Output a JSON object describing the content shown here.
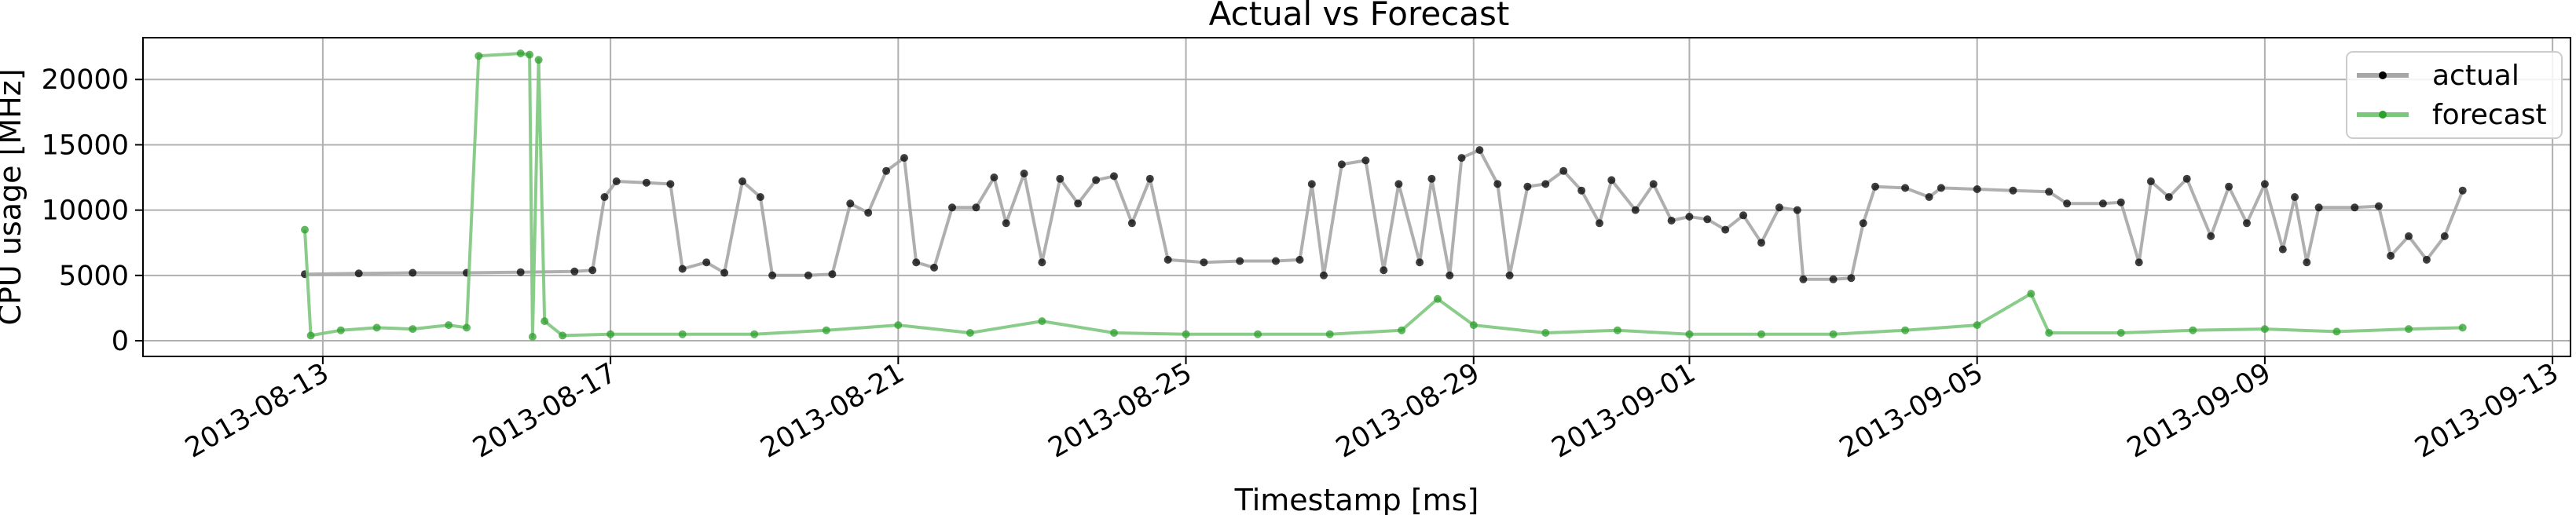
{
  "chart_data": {
    "type": "line",
    "title": "Actual vs Forecast",
    "xlabel": "Timestamp [ms]",
    "ylabel": "CPU usage [MHz]",
    "x_range": [
      "2013-08-10T12:00",
      "2013-09-13T06:00"
    ],
    "ylim": [
      -1200,
      23200
    ],
    "grid": true,
    "legend_position": "top-right",
    "x_ticks": [
      "2013-08-13",
      "2013-08-17",
      "2013-08-21",
      "2013-08-25",
      "2013-08-29",
      "2013-09-01",
      "2013-09-05",
      "2013-09-09",
      "2013-09-13"
    ],
    "y_ticks": [
      0,
      5000,
      10000,
      15000,
      20000
    ],
    "y_tick_labels": [
      "0",
      "5000",
      "10000",
      "15000",
      "20000"
    ],
    "series": [
      {
        "name": "actual",
        "color": "#000000",
        "line_color": "#a6a6a6",
        "points": [
          [
            "2013-08-12T18:00",
            5100
          ],
          [
            "2013-08-13T12:00",
            5150
          ],
          [
            "2013-08-14T06:00",
            5200
          ],
          [
            "2013-08-15T00:00",
            5200
          ],
          [
            "2013-08-15T18:00",
            5250
          ],
          [
            "2013-08-16T12:00",
            5300
          ],
          [
            "2013-08-16T18:00",
            5400
          ],
          [
            "2013-08-16T22:00",
            11000
          ],
          [
            "2013-08-17T02:00",
            12200
          ],
          [
            "2013-08-17T12:00",
            12100
          ],
          [
            "2013-08-17T20:00",
            12000
          ],
          [
            "2013-08-18T00:00",
            5500
          ],
          [
            "2013-08-18T08:00",
            6000
          ],
          [
            "2013-08-18T14:00",
            5200
          ],
          [
            "2013-08-18T20:00",
            12200
          ],
          [
            "2013-08-19T02:00",
            11000
          ],
          [
            "2013-08-19T06:00",
            5000
          ],
          [
            "2013-08-19T18:00",
            5000
          ],
          [
            "2013-08-20T02:00",
            5100
          ],
          [
            "2013-08-20T08:00",
            10500
          ],
          [
            "2013-08-20T14:00",
            9800
          ],
          [
            "2013-08-20T20:00",
            13000
          ],
          [
            "2013-08-21T02:00",
            14000
          ],
          [
            "2013-08-21T06:00",
            6000
          ],
          [
            "2013-08-21T12:00",
            5600
          ],
          [
            "2013-08-21T18:00",
            10200
          ],
          [
            "2013-08-22T02:00",
            10200
          ],
          [
            "2013-08-22T08:00",
            12500
          ],
          [
            "2013-08-22T12:00",
            9000
          ],
          [
            "2013-08-22T18:00",
            12800
          ],
          [
            "2013-08-23T00:00",
            6000
          ],
          [
            "2013-08-23T06:00",
            12400
          ],
          [
            "2013-08-23T12:00",
            10500
          ],
          [
            "2013-08-23T18:00",
            12300
          ],
          [
            "2013-08-24T00:00",
            12600
          ],
          [
            "2013-08-24T06:00",
            9000
          ],
          [
            "2013-08-24T12:00",
            12400
          ],
          [
            "2013-08-24T18:00",
            6200
          ],
          [
            "2013-08-25T06:00",
            6000
          ],
          [
            "2013-08-25T18:00",
            6100
          ],
          [
            "2013-08-26T06:00",
            6100
          ],
          [
            "2013-08-26T14:00",
            6200
          ],
          [
            "2013-08-26T18:00",
            12000
          ],
          [
            "2013-08-26T22:00",
            5000
          ],
          [
            "2013-08-27T04:00",
            13500
          ],
          [
            "2013-08-27T12:00",
            13800
          ],
          [
            "2013-08-27T18:00",
            5400
          ],
          [
            "2013-08-27T23:00",
            12000
          ],
          [
            "2013-08-28T06:00",
            6000
          ],
          [
            "2013-08-28T10:00",
            12400
          ],
          [
            "2013-08-28T16:00",
            5000
          ],
          [
            "2013-08-28T20:00",
            14000
          ],
          [
            "2013-08-29T02:00",
            14600
          ],
          [
            "2013-08-29T08:00",
            12000
          ],
          [
            "2013-08-29T12:00",
            5000
          ],
          [
            "2013-08-29T18:00",
            11800
          ],
          [
            "2013-08-30T00:00",
            12000
          ],
          [
            "2013-08-30T06:00",
            13000
          ],
          [
            "2013-08-30T12:00",
            11500
          ],
          [
            "2013-08-30T18:00",
            9000
          ],
          [
            "2013-08-30T22:00",
            12300
          ],
          [
            "2013-08-31T06:00",
            10000
          ],
          [
            "2013-08-31T12:00",
            12000
          ],
          [
            "2013-08-31T18:00",
            9200
          ],
          [
            "2013-09-01T00:00",
            9500
          ],
          [
            "2013-09-01T06:00",
            9300
          ],
          [
            "2013-09-01T12:00",
            8500
          ],
          [
            "2013-09-01T18:00",
            9600
          ],
          [
            "2013-09-02T00:00",
            7500
          ],
          [
            "2013-09-02T06:00",
            10200
          ],
          [
            "2013-09-02T12:00",
            10000
          ],
          [
            "2013-09-02T14:00",
            4700
          ],
          [
            "2013-09-03T00:00",
            4700
          ],
          [
            "2013-09-03T06:00",
            4800
          ],
          [
            "2013-09-03T10:00",
            9000
          ],
          [
            "2013-09-03T14:00",
            11800
          ],
          [
            "2013-09-04T00:00",
            11700
          ],
          [
            "2013-09-04T08:00",
            11000
          ],
          [
            "2013-09-04T12:00",
            11700
          ],
          [
            "2013-09-05T00:00",
            11600
          ],
          [
            "2013-09-05T12:00",
            11500
          ],
          [
            "2013-09-06T00:00",
            11400
          ],
          [
            "2013-09-06T06:00",
            10500
          ],
          [
            "2013-09-06T18:00",
            10500
          ],
          [
            "2013-09-07T00:00",
            10600
          ],
          [
            "2013-09-07T06:00",
            6000
          ],
          [
            "2013-09-07T10:00",
            12200
          ],
          [
            "2013-09-07T16:00",
            11000
          ],
          [
            "2013-09-07T22:00",
            12400
          ],
          [
            "2013-09-08T06:00",
            8000
          ],
          [
            "2013-09-08T12:00",
            11800
          ],
          [
            "2013-09-08T18:00",
            9000
          ],
          [
            "2013-09-09T00:00",
            12000
          ],
          [
            "2013-09-09T06:00",
            7000
          ],
          [
            "2013-09-09T10:00",
            11000
          ],
          [
            "2013-09-09T14:00",
            6000
          ],
          [
            "2013-09-09T18:00",
            10200
          ],
          [
            "2013-09-10T06:00",
            10200
          ],
          [
            "2013-09-10T14:00",
            10300
          ],
          [
            "2013-09-10T18:00",
            6500
          ],
          [
            "2013-09-11T00:00",
            8000
          ],
          [
            "2013-09-11T06:00",
            6200
          ],
          [
            "2013-09-11T12:00",
            8000
          ],
          [
            "2013-09-11T18:00",
            11500
          ]
        ]
      },
      {
        "name": "forecast",
        "color": "#2ca02c",
        "line_color": "#7dc77d",
        "points": [
          [
            "2013-08-12T18:00",
            8500
          ],
          [
            "2013-08-12T20:00",
            400
          ],
          [
            "2013-08-13T06:00",
            800
          ],
          [
            "2013-08-13T18:00",
            1000
          ],
          [
            "2013-08-14T06:00",
            900
          ],
          [
            "2013-08-14T18:00",
            1200
          ],
          [
            "2013-08-15T00:00",
            1000
          ],
          [
            "2013-08-15T04:00",
            21800
          ],
          [
            "2013-08-15T18:00",
            22000
          ],
          [
            "2013-08-15T21:00",
            21900
          ],
          [
            "2013-08-15T22:00",
            300
          ],
          [
            "2013-08-16T00:00",
            21500
          ],
          [
            "2013-08-16T02:00",
            1500
          ],
          [
            "2013-08-16T08:00",
            400
          ],
          [
            "2013-08-17T00:00",
            500
          ],
          [
            "2013-08-18T00:00",
            500
          ],
          [
            "2013-08-19T00:00",
            500
          ],
          [
            "2013-08-20T00:00",
            800
          ],
          [
            "2013-08-21T00:00",
            1200
          ],
          [
            "2013-08-22T00:00",
            600
          ],
          [
            "2013-08-23T00:00",
            1500
          ],
          [
            "2013-08-24T00:00",
            600
          ],
          [
            "2013-08-25T00:00",
            500
          ],
          [
            "2013-08-26T00:00",
            500
          ],
          [
            "2013-08-27T00:00",
            500
          ],
          [
            "2013-08-28T00:00",
            800
          ],
          [
            "2013-08-28T12:00",
            3200
          ],
          [
            "2013-08-29T00:00",
            1200
          ],
          [
            "2013-08-30T00:00",
            600
          ],
          [
            "2013-08-31T00:00",
            800
          ],
          [
            "2013-09-01T00:00",
            500
          ],
          [
            "2013-09-02T00:00",
            500
          ],
          [
            "2013-09-03T00:00",
            500
          ],
          [
            "2013-09-04T00:00",
            800
          ],
          [
            "2013-09-05T00:00",
            1200
          ],
          [
            "2013-09-05T18:00",
            3600
          ],
          [
            "2013-09-06T00:00",
            600
          ],
          [
            "2013-09-07T00:00",
            600
          ],
          [
            "2013-09-08T00:00",
            800
          ],
          [
            "2013-09-09T00:00",
            900
          ],
          [
            "2013-09-10T00:00",
            700
          ],
          [
            "2013-09-11T00:00",
            900
          ],
          [
            "2013-09-11T18:00",
            1000
          ]
        ]
      }
    ]
  }
}
